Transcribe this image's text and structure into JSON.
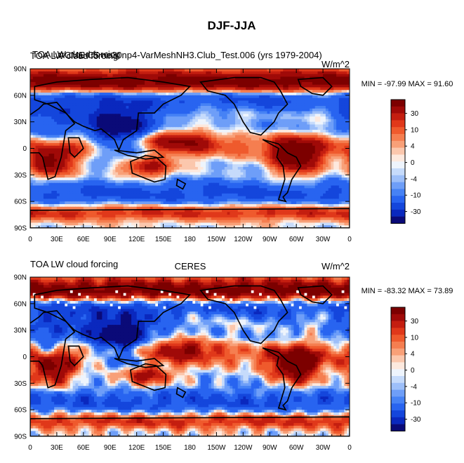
{
  "figure_title": "DJF-JJA",
  "colors": {
    "palette": [
      "#0a0a78",
      "#0a28be",
      "#1446dc",
      "#2864f0",
      "#4682f5",
      "#6e9ef8",
      "#9dbff9",
      "#c6dbfb",
      "#eef4fc",
      "#fde9de",
      "#fbc7ad",
      "#f8a078",
      "#f57e50",
      "#ef5a2d",
      "#e0381a",
      "#c41e10",
      "#a00a08",
      "#7c0000"
    ]
  },
  "chart_data": [
    {
      "type": "heatmap",
      "left_title": "TOA LW cloud forcing",
      "left_title_overlap": "TOA LW cloud forcing",
      "center_title": "ACME C5 ne30np4-VarMeshNH3.Club_Test.006 (yrs 1979-2004)",
      "right_title": "W/m^2",
      "stats": "MIN = -97.99 MAX =  91.60",
      "x_ticks": [
        "0",
        "30E",
        "60E",
        "90E",
        "120E",
        "150E",
        "180",
        "150W",
        "120W",
        "90W",
        "60W",
        "30W",
        "0"
      ],
      "y_ticks": [
        "90N",
        "60N",
        "30N",
        "0",
        "30S",
        "60S",
        "90S"
      ],
      "legend_levels": [
        "30",
        "10",
        "4",
        "0",
        "-4",
        "-10",
        "-30"
      ],
      "xlim": [
        0,
        360
      ],
      "ylim": [
        -90,
        90
      ],
      "missing_data": false
    },
    {
      "type": "heatmap",
      "left_title": "TOA LW cloud forcing",
      "center_title": "CERES",
      "right_title": "W/m^2",
      "stats": "MIN = -83.32 MAX =  73.89",
      "x_ticks": [
        "0",
        "30E",
        "60E",
        "90E",
        "120E",
        "150E",
        "180",
        "150W",
        "120W",
        "90W",
        "60W",
        "30W",
        "0"
      ],
      "y_ticks": [
        "90N",
        "60N",
        "30N",
        "0",
        "30S",
        "60S",
        "90S"
      ],
      "legend_levels": [
        "30",
        "10",
        "4",
        "0",
        "-4",
        "-10",
        "-30"
      ],
      "xlim": [
        0,
        360
      ],
      "ylim": [
        -90,
        90
      ],
      "missing_data": true
    }
  ]
}
